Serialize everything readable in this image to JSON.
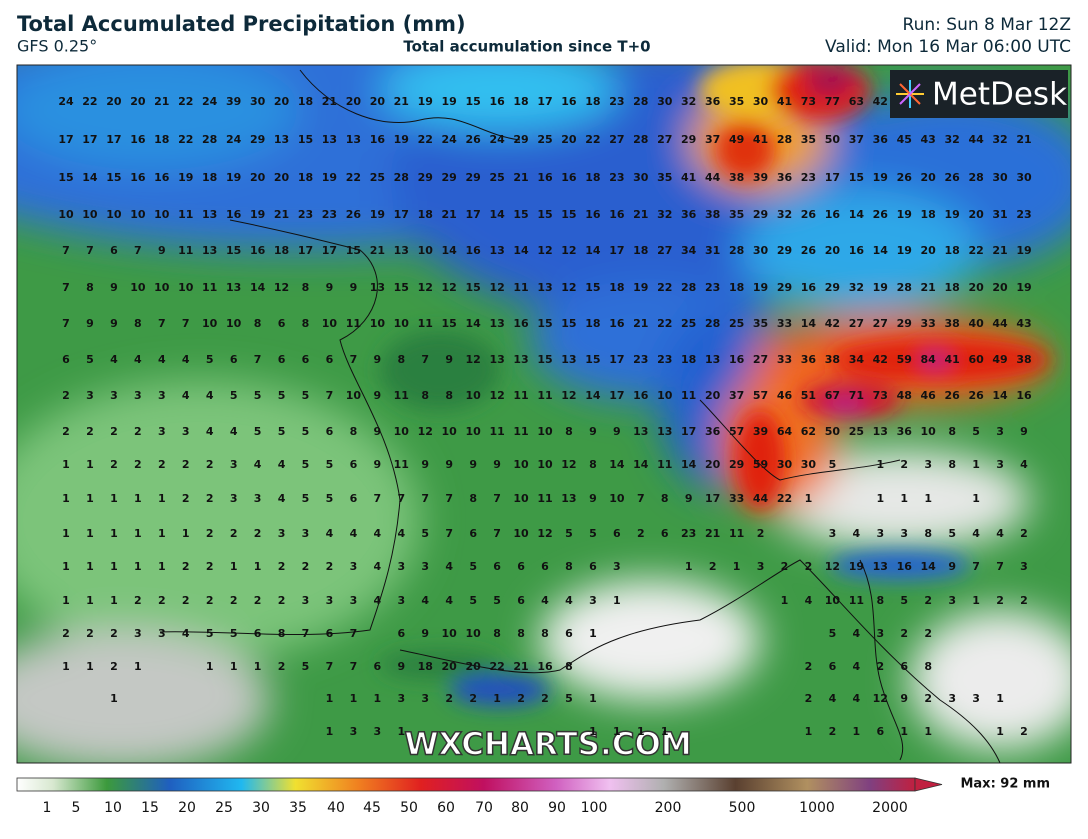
{
  "header": {
    "title": "Total Accumulated Precipitation (mm)",
    "model": "GFS 0.25°",
    "subtitle": "Total accumulation since T+0",
    "run": "Run: Sun 8 Mar 12Z",
    "valid": "Valid: Mon 16 Mar 06:00 UTC"
  },
  "logo": "MetDesk",
  "watermark": "WXCHARTS.COM",
  "grid": {
    "rows": [
      [
        24,
        22,
        20,
        20,
        21,
        22,
        24,
        39,
        30,
        20,
        18,
        21,
        20,
        20,
        21,
        19,
        19,
        15,
        16,
        18,
        17,
        16,
        18,
        23,
        28,
        30,
        32,
        36,
        35,
        30,
        41,
        73,
        77,
        63,
        42
      ],
      [
        17,
        17,
        17,
        16,
        18,
        22,
        28,
        24,
        29,
        13,
        15,
        13,
        13,
        16,
        19,
        22,
        24,
        26,
        24,
        29,
        25,
        20,
        22,
        27,
        28,
        27,
        29,
        37,
        49,
        41,
        28,
        35,
        50,
        37,
        36,
        45,
        43,
        32,
        44,
        32,
        21
      ],
      [
        15,
        14,
        15,
        16,
        16,
        19,
        18,
        19,
        20,
        20,
        18,
        19,
        22,
        25,
        28,
        29,
        29,
        29,
        25,
        21,
        16,
        16,
        18,
        23,
        30,
        35,
        41,
        44,
        38,
        39,
        36,
        23,
        17,
        15,
        19,
        26,
        20,
        26,
        28,
        30,
        30
      ],
      [
        10,
        10,
        10,
        10,
        10,
        11,
        13,
        16,
        19,
        21,
        23,
        23,
        26,
        19,
        17,
        18,
        21,
        17,
        14,
        15,
        15,
        15,
        16,
        16,
        21,
        32,
        36,
        38,
        35,
        29,
        32,
        26,
        16,
        14,
        26,
        19,
        18,
        19,
        20,
        31,
        23
      ],
      [
        7,
        7,
        6,
        7,
        9,
        11,
        13,
        15,
        16,
        18,
        17,
        17,
        15,
        21,
        13,
        10,
        14,
        16,
        13,
        14,
        12,
        12,
        14,
        17,
        18,
        27,
        34,
        31,
        28,
        30,
        29,
        26,
        20,
        16,
        14,
        19,
        20,
        18,
        22,
        21,
        19
      ],
      [
        7,
        8,
        9,
        10,
        10,
        10,
        11,
        13,
        14,
        12,
        8,
        9,
        9,
        13,
        15,
        12,
        12,
        15,
        12,
        11,
        13,
        12,
        15,
        18,
        19,
        22,
        28,
        23,
        18,
        19,
        29,
        16,
        29,
        32,
        19,
        28,
        21,
        18,
        20,
        20,
        19
      ],
      [
        7,
        9,
        9,
        8,
        7,
        7,
        10,
        10,
        8,
        6,
        8,
        10,
        11,
        10,
        10,
        11,
        15,
        14,
        13,
        16,
        15,
        15,
        18,
        16,
        21,
        22,
        25,
        28,
        25,
        35,
        33,
        14,
        42,
        27,
        27,
        29,
        33,
        38,
        40,
        44,
        43
      ],
      [
        6,
        5,
        4,
        4,
        4,
        4,
        5,
        6,
        7,
        6,
        6,
        6,
        7,
        9,
        8,
        7,
        9,
        12,
        13,
        13,
        15,
        13,
        15,
        17,
        23,
        23,
        18,
        13,
        16,
        27,
        33,
        36,
        38,
        34,
        42,
        59,
        84,
        41,
        60,
        49,
        38
      ],
      [
        2,
        3,
        3,
        3,
        3,
        4,
        4,
        5,
        5,
        5,
        5,
        7,
        10,
        9,
        11,
        8,
        8,
        10,
        12,
        11,
        11,
        12,
        14,
        17,
        16,
        10,
        11,
        20,
        37,
        57,
        46,
        51,
        67,
        71,
        73,
        48,
        46,
        26,
        26,
        14,
        16
      ],
      [
        2,
        2,
        2,
        2,
        3,
        3,
        4,
        4,
        5,
        5,
        5,
        6,
        8,
        9,
        10,
        12,
        10,
        10,
        11,
        11,
        10,
        8,
        9,
        9,
        13,
        13,
        17,
        36,
        57,
        39,
        64,
        62,
        50,
        25,
        13,
        36,
        10,
        8,
        5,
        3,
        9
      ],
      [
        1,
        1,
        2,
        2,
        2,
        2,
        2,
        3,
        4,
        4,
        5,
        5,
        6,
        9,
        11,
        9,
        9,
        9,
        9,
        10,
        10,
        12,
        8,
        14,
        14,
        11,
        14,
        20,
        29,
        59,
        30,
        30,
        5,
        null,
        1,
        2,
        3,
        8,
        1,
        3,
        4
      ],
      [
        1,
        1,
        1,
        1,
        1,
        2,
        2,
        3,
        3,
        4,
        5,
        5,
        6,
        7,
        7,
        7,
        7,
        8,
        7,
        10,
        11,
        13,
        9,
        10,
        7,
        8,
        9,
        17,
        33,
        44,
        22,
        1,
        null,
        null,
        1,
        1,
        1,
        null,
        1
      ],
      [
        1,
        1,
        1,
        1,
        1,
        1,
        2,
        2,
        2,
        3,
        3,
        4,
        4,
        4,
        4,
        5,
        7,
        6,
        7,
        10,
        12,
        5,
        5,
        6,
        2,
        6,
        23,
        21,
        11,
        2,
        null,
        null,
        3,
        4,
        3,
        3,
        8,
        5,
        4,
        4,
        2
      ],
      [
        1,
        1,
        1,
        1,
        1,
        2,
        2,
        1,
        1,
        2,
        2,
        2,
        3,
        4,
        3,
        3,
        4,
        5,
        6,
        6,
        6,
        8,
        6,
        3,
        null,
        null,
        1,
        2,
        1,
        3,
        2,
        2,
        12,
        19,
        13,
        16,
        14,
        9,
        7,
        7,
        3
      ],
      [
        1,
        1,
        1,
        2,
        2,
        2,
        2,
        2,
        2,
        2,
        3,
        3,
        3,
        4,
        3,
        4,
        4,
        5,
        5,
        6,
        4,
        4,
        3,
        1,
        null,
        null,
        null,
        null,
        null,
        null,
        1,
        4,
        10,
        11,
        8,
        5,
        2,
        3,
        1,
        2,
        2
      ],
      [
        2,
        2,
        2,
        3,
        3,
        4,
        5,
        5,
        6,
        8,
        7,
        6,
        7,
        null,
        6,
        9,
        10,
        10,
        8,
        8,
        8,
        6,
        1,
        null,
        null,
        null,
        null,
        null,
        null,
        null,
        null,
        null,
        5,
        4,
        3,
        2,
        2
      ],
      [
        1,
        1,
        2,
        1,
        null,
        null,
        1,
        1,
        1,
        2,
        5,
        7,
        7,
        6,
        9,
        18,
        20,
        20,
        22,
        21,
        16,
        8,
        null,
        null,
        null,
        null,
        null,
        null,
        null,
        null,
        null,
        2,
        6,
        4,
        2,
        6,
        8
      ],
      [
        null,
        null,
        1,
        null,
        null,
        null,
        null,
        null,
        null,
        null,
        null,
        1,
        1,
        1,
        3,
        3,
        2,
        2,
        1,
        2,
        2,
        5,
        1,
        null,
        null,
        null,
        null,
        null,
        null,
        null,
        null,
        2,
        4,
        4,
        12,
        9,
        2,
        3,
        3,
        1
      ],
      [
        null,
        null,
        null,
        null,
        null,
        null,
        null,
        null,
        null,
        null,
        null,
        1,
        3,
        3,
        1,
        null,
        null,
        null,
        null,
        null,
        null,
        null,
        1,
        1,
        1,
        1,
        null,
        null,
        null,
        null,
        null,
        1,
        2,
        1,
        6,
        1,
        1,
        null,
        null,
        1,
        2
      ]
    ]
  },
  "colorbar": {
    "ticks": [
      1,
      5,
      10,
      15,
      20,
      25,
      30,
      35,
      40,
      45,
      50,
      60,
      70,
      80,
      90,
      100,
      200,
      500,
      1000,
      2000
    ],
    "max": "Max: 92 mm"
  }
}
